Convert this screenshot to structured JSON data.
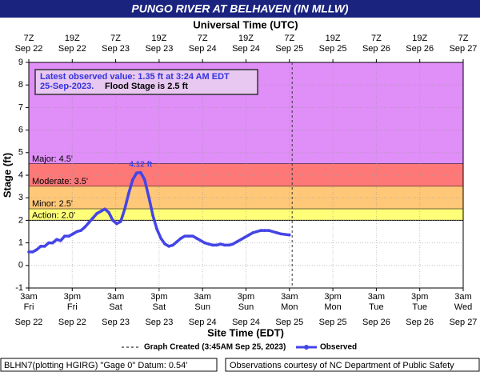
{
  "chart_data": {
    "type": "line",
    "title": "PUNGO RIVER AT BELHAVEN (IN MLLW)",
    "x2_label": "Universal Time (UTC)",
    "x_label": "Site Time (EDT)",
    "y_label": "Stage (ft)",
    "xlim": [
      0,
      120
    ],
    "ylim": [
      -1,
      9
    ],
    "yticks": [
      -1,
      0,
      1,
      2,
      3,
      4,
      5,
      6,
      7,
      8,
      9
    ],
    "xticks": [
      {
        "value": 0,
        "label": "3am"
      },
      {
        "value": 12,
        "label": "3pm"
      },
      {
        "value": 24,
        "label": "3am"
      },
      {
        "value": 36,
        "label": "3pm"
      },
      {
        "value": 48,
        "label": "3am"
      },
      {
        "value": 60,
        "label": "3pm"
      },
      {
        "value": 72,
        "label": "3am"
      },
      {
        "value": 84,
        "label": "3pm"
      },
      {
        "value": 96,
        "label": "3am"
      },
      {
        "value": 108,
        "label": "3pm"
      },
      {
        "value": 120,
        "label": "3am"
      }
    ],
    "xtick_days": [
      "Fri",
      "Fri",
      "Sat",
      "Sat",
      "Sun",
      "Sun",
      "Mon",
      "Mon",
      "Tue",
      "Tue",
      "Wed"
    ],
    "xtick_dates": [
      "Sep 22",
      "Sep 22",
      "Sep 23",
      "Sep 23",
      "Sep 24",
      "Sep 24",
      "Sep 25",
      "Sep 25",
      "Sep 26",
      "Sep 26",
      "Sep 27"
    ],
    "x2ticks": [
      "7Z",
      "19Z",
      "7Z",
      "19Z",
      "7Z",
      "19Z",
      "7Z",
      "19Z",
      "7Z",
      "19Z",
      "7Z"
    ],
    "x2tick_dates": [
      "Sep 22",
      "Sep 22",
      "Sep 23",
      "Sep 23",
      "Sep 24",
      "Sep 24",
      "Sep 25",
      "Sep 25",
      "Sep 26",
      "Sep 26",
      "Sep 27"
    ],
    "flood_levels": [
      {
        "label": "Major: 4.5'",
        "value": 4.5,
        "color": "#e08ef8"
      },
      {
        "label": "Moderate: 3.5'",
        "value": 3.5,
        "color": "#ff7878"
      },
      {
        "label": "Minor: 2.5'",
        "value": 2.5,
        "color": "#ffc878"
      },
      {
        "label": "Action: 2.0'",
        "value": 2.0,
        "color": "#ffff78"
      }
    ],
    "created_x": 72.75,
    "series": [
      {
        "name": "Observed",
        "color": "#4444e6",
        "x": [
          0,
          1.1,
          2.2,
          3.3,
          4.4,
          5.5,
          6.6,
          7.7,
          8.8,
          9.9,
          11.1,
          12.2,
          13.3,
          14.4,
          15.5,
          16.6,
          17.7,
          18.8,
          19.9,
          21.0,
          22.1,
          23.2,
          24.3,
          25.4,
          26.5,
          27.6,
          28.7,
          29.8,
          30.9,
          32.0,
          33.2,
          34.3,
          35.4,
          36.5,
          37.6,
          38.7,
          39.8,
          40.9,
          42.0,
          43.1,
          44.2,
          45.3,
          46.4,
          47.5,
          48.6,
          49.7,
          50.8,
          51.9,
          53.0,
          54.1,
          55.3,
          56.4,
          57.5,
          58.6,
          59.7,
          60.8,
          61.9,
          63.0,
          64.1,
          65.2,
          66.3,
          67.4,
          68.5,
          69.6,
          72.0
        ],
        "values": [
          0.6,
          0.6,
          0.7,
          0.85,
          0.85,
          1.0,
          1.0,
          1.15,
          1.1,
          1.3,
          1.3,
          1.4,
          1.5,
          1.55,
          1.7,
          1.9,
          2.1,
          2.3,
          2.4,
          2.5,
          2.35,
          2.0,
          1.85,
          1.95,
          2.5,
          3.2,
          3.8,
          4.1,
          4.12,
          3.8,
          3.0,
          2.2,
          1.6,
          1.2,
          0.95,
          0.85,
          0.9,
          1.05,
          1.2,
          1.3,
          1.3,
          1.3,
          1.2,
          1.1,
          1.0,
          0.95,
          0.9,
          0.9,
          0.95,
          0.9,
          0.9,
          0.95,
          1.05,
          1.15,
          1.25,
          1.35,
          1.45,
          1.5,
          1.55,
          1.55,
          1.55,
          1.5,
          1.45,
          1.4,
          1.35
        ]
      }
    ],
    "peak_label": "4.12 ft",
    "peak_index": 28,
    "info_line1": "Latest observed value: 1.35 ft at 3:24 AM EDT",
    "info_line2a": "25-Sep-2023.",
    "info_line2b": "Flood Stage is 2.5 ft",
    "created_legend": "Graph Created (3:45AM Sep 25, 2023)",
    "footer_left": "BLHN7(plotting HGIRG) \"Gage 0\" Datum: 0.54'",
    "footer_right": "Observations courtesy of NC Department of Public Safety"
  }
}
